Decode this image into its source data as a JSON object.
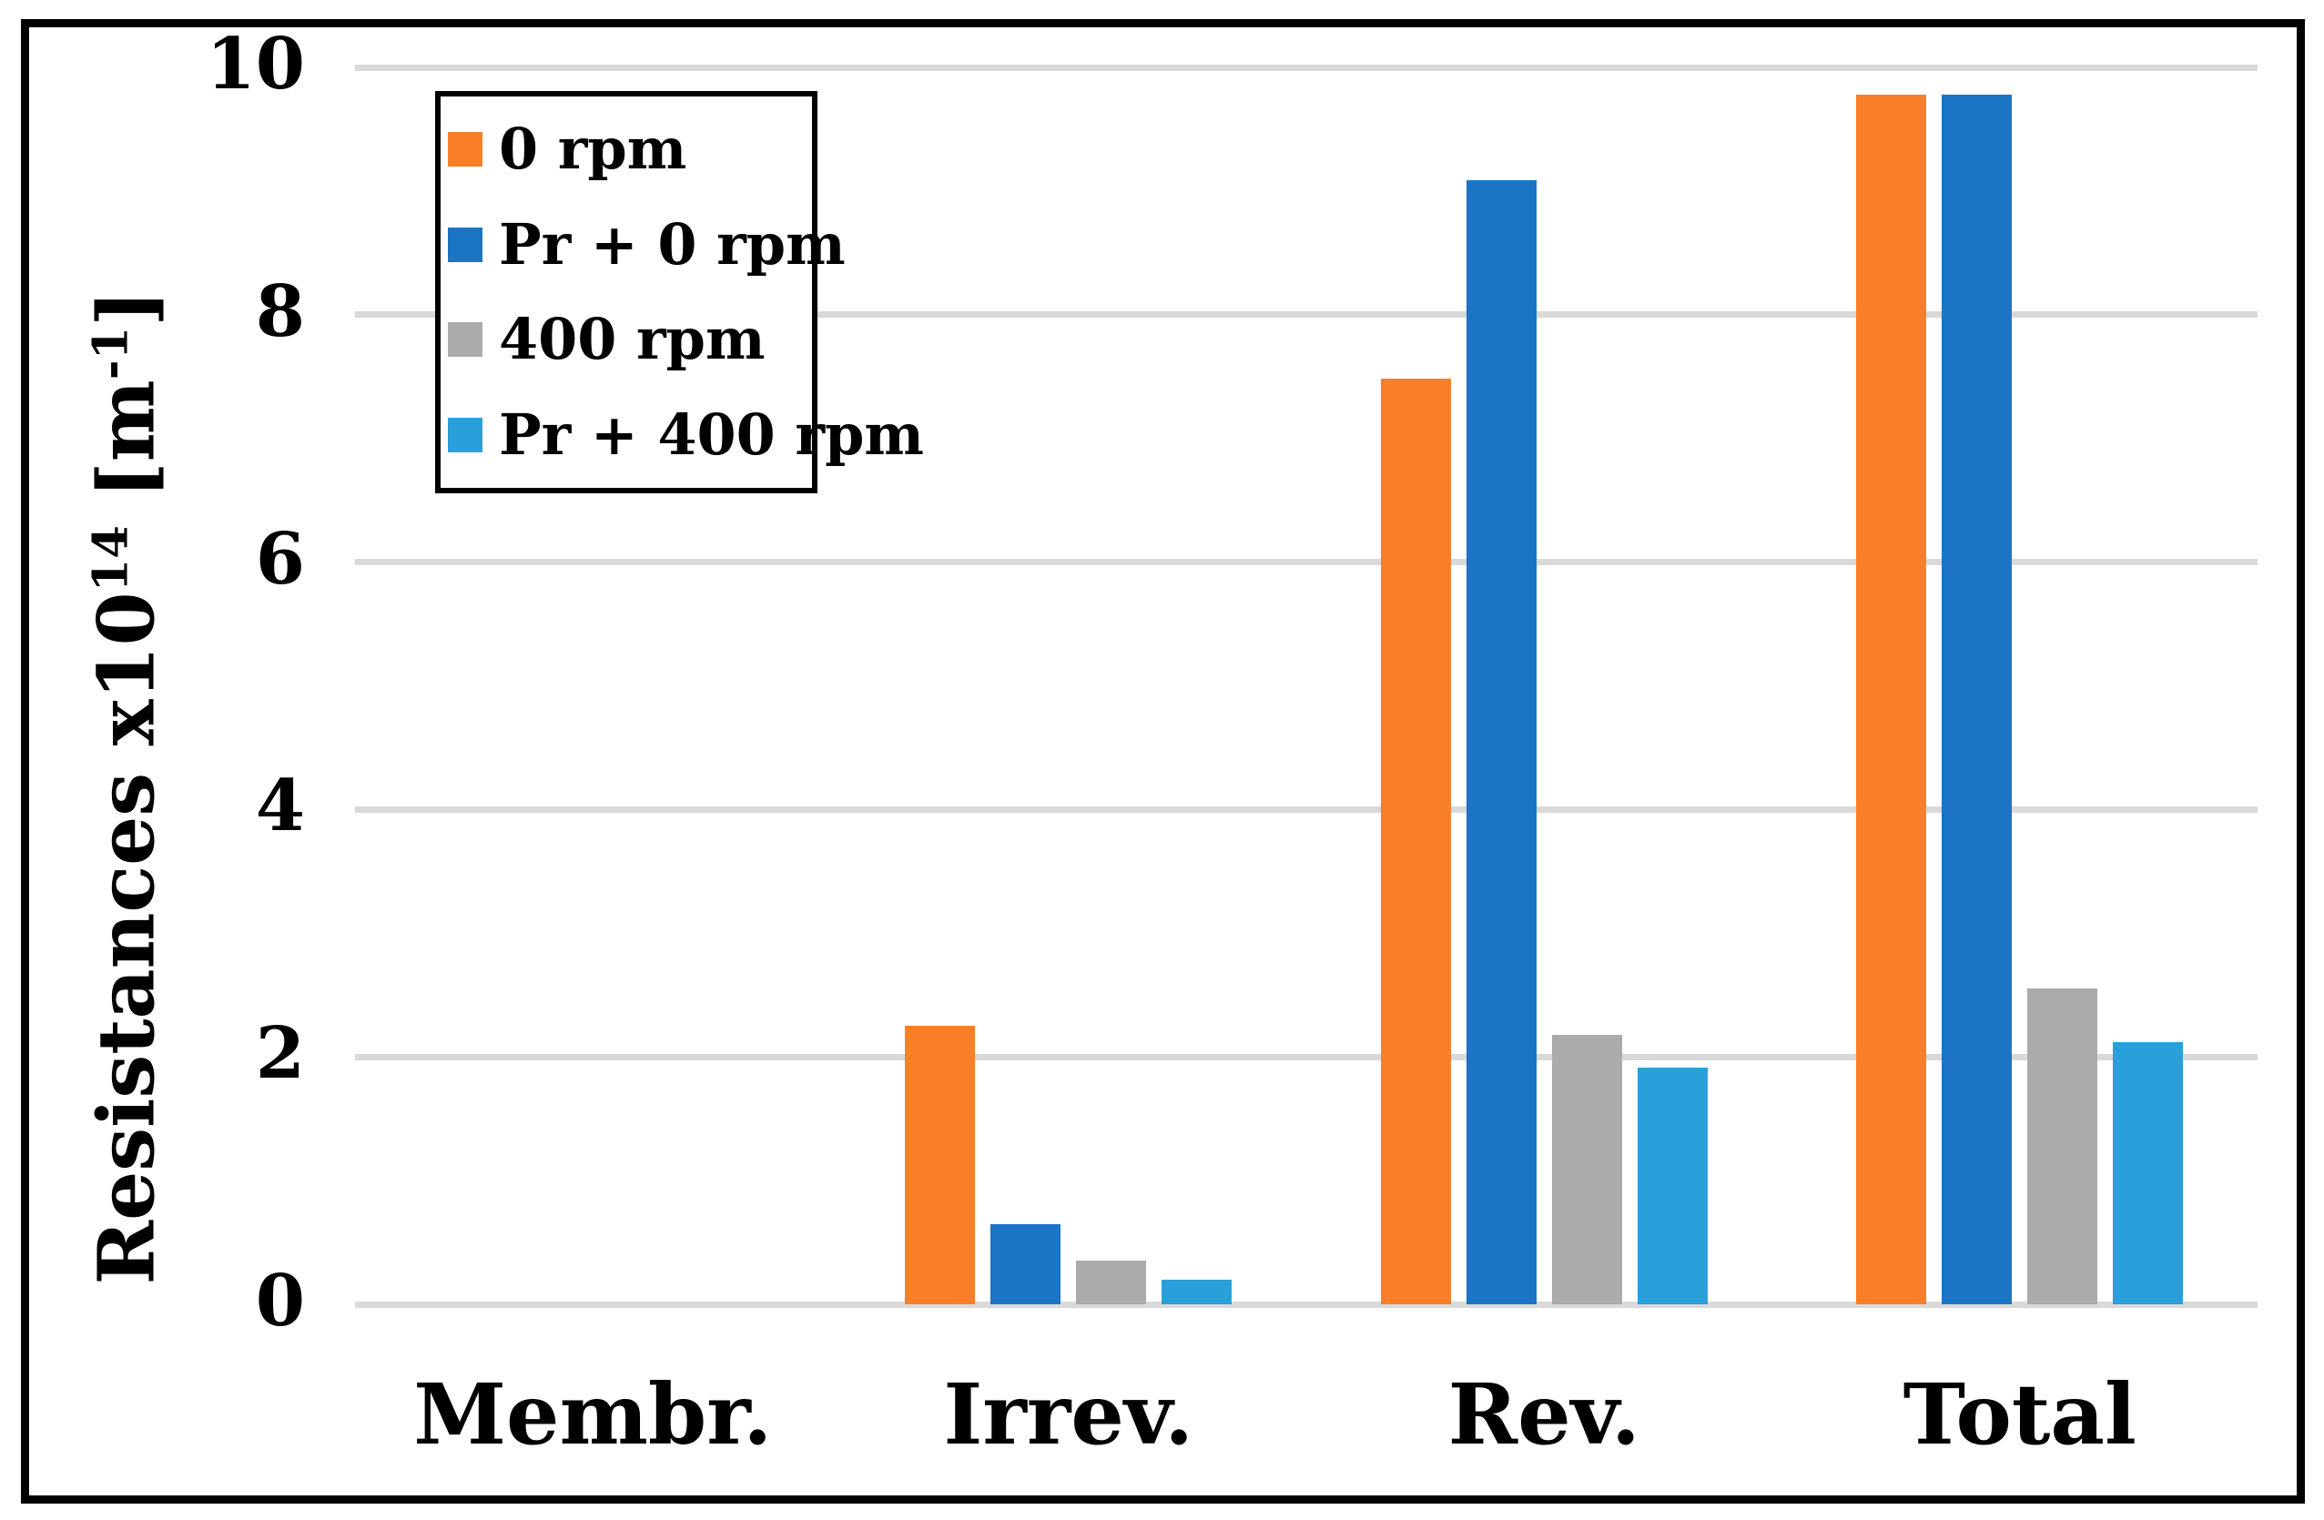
{
  "chart_data": {
    "type": "bar",
    "title": "",
    "categories": [
      "Membr.",
      "Irrev.",
      "Rev.",
      "Total"
    ],
    "series": [
      {
        "name": "0 rpm",
        "color": "#F87E28",
        "values": [
          0,
          2.25,
          7.48,
          9.78
        ]
      },
      {
        "name": "Pr + 0 rpm",
        "color": "#1B74C4",
        "values": [
          0,
          0.65,
          9.09,
          9.78
        ]
      },
      {
        "name": "400 rpm",
        "color": "#ABABAB",
        "values": [
          0,
          0.35,
          2.18,
          2.55
        ]
      },
      {
        "name": "Pr + 400 rpm",
        "color": "#29A0DA",
        "values": [
          0,
          0.2,
          1.91,
          2.12
        ]
      }
    ],
    "xlabel": "",
    "ylabel": {
      "base1": "Resistances x10",
      "sup1": "14",
      "base2": " [m",
      "sup2": "-1",
      "base3": "]"
    },
    "ylim": [
      0,
      10
    ],
    "yticks": [
      0,
      2,
      4,
      6,
      8,
      10
    ],
    "grid": true,
    "gridline_color": "#D9D9D9",
    "legend_position": "upper-left",
    "background": "#FFFFFF",
    "frame_color": "#000000"
  }
}
